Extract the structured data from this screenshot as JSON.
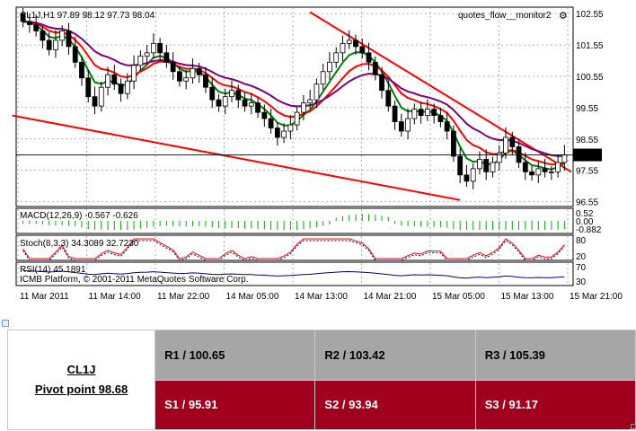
{
  "chart_data": {
    "type": "candlestick",
    "symbol_header": "CL1J,H1  97.89 98.12 97.73 98.04",
    "watermark": "quotes_flow__monitor2",
    "price_axis": {
      "ticks": [
        "102.55",
        "101.55",
        "100.55",
        "99.55",
        "98.55",
        "97.55",
        "96.55"
      ],
      "ylim": [
        96.45,
        102.7
      ],
      "current_price": "98.04"
    },
    "time_labels": [
      "11 Mar 2011",
      "11 Mar 14:00",
      "11 Mar 22:00",
      "14 Mar 05:00",
      "14 Mar 13:00",
      "14 Mar 21:00",
      "15 Mar 05:00",
      "15 Mar 13:00",
      "15 Mar 21:00"
    ],
    "grid": true,
    "closes": [
      102.3,
      102.2,
      102.0,
      101.7,
      101.4,
      101.7,
      102.0,
      101.5,
      101.0,
      100.5,
      99.9,
      99.6,
      100.2,
      100.6,
      100.3,
      100.0,
      100.4,
      100.9,
      101.2,
      101.3,
      101.6,
      101.3,
      101.0,
      100.7,
      100.4,
      100.5,
      100.8,
      100.6,
      100.2,
      99.8,
      99.6,
      99.9,
      100.1,
      99.8,
      99.6,
      99.7,
      99.4,
      99.2,
      98.9,
      98.6,
      98.8,
      99.0,
      99.4,
      99.7,
      99.8,
      100.3,
      100.7,
      101.0,
      101.3,
      101.6,
      101.7,
      101.5,
      101.3,
      101.0,
      100.6,
      100.1,
      99.6,
      99.1,
      98.8,
      99.2,
      99.5,
      99.3,
      99.5,
      99.3,
      99.1,
      98.8,
      98.0,
      97.4,
      97.2,
      97.6,
      97.9,
      97.5,
      97.8,
      98.1,
      98.6,
      98.3,
      97.8,
      97.5,
      97.4,
      97.6,
      97.5,
      97.5,
      97.8,
      98.04
    ],
    "indicators": [
      {
        "label": "MACD(12,26,9) -0.567 -0.626",
        "ticks": [
          "0.52",
          "0.00",
          "-0.882"
        ]
      },
      {
        "label": "Stoch(8,3,3) 34.3089 32.7230",
        "ticks": [
          "80",
          "20"
        ]
      },
      {
        "label": "RSI(14) 45.1891",
        "ticks": [
          "70",
          "30"
        ]
      }
    ],
    "copyright": "ICMB Platform, © 2001-2011 MetaQuotes Software Corp.",
    "colors": {
      "ma_fast": "#008000",
      "ma_mid": "#ff0000",
      "ma_slow": "#800080",
      "trendline": "#ff0000",
      "macd_hist": "#00aa00",
      "stoch_main": "#ff0000",
      "stoch_signal": "#000080",
      "rsi": "#000080"
    }
  },
  "table": {
    "symbol": "CL1J",
    "pivot": "Pivot point 98.68",
    "r1": "R1 / 100.65",
    "r2": "R2  / 103.42",
    "r3": "R3 / 105.39",
    "s1": "S1 / 95.91",
    "s2": "S2 /  93.94",
    "s3": "S3 /  91.17"
  }
}
